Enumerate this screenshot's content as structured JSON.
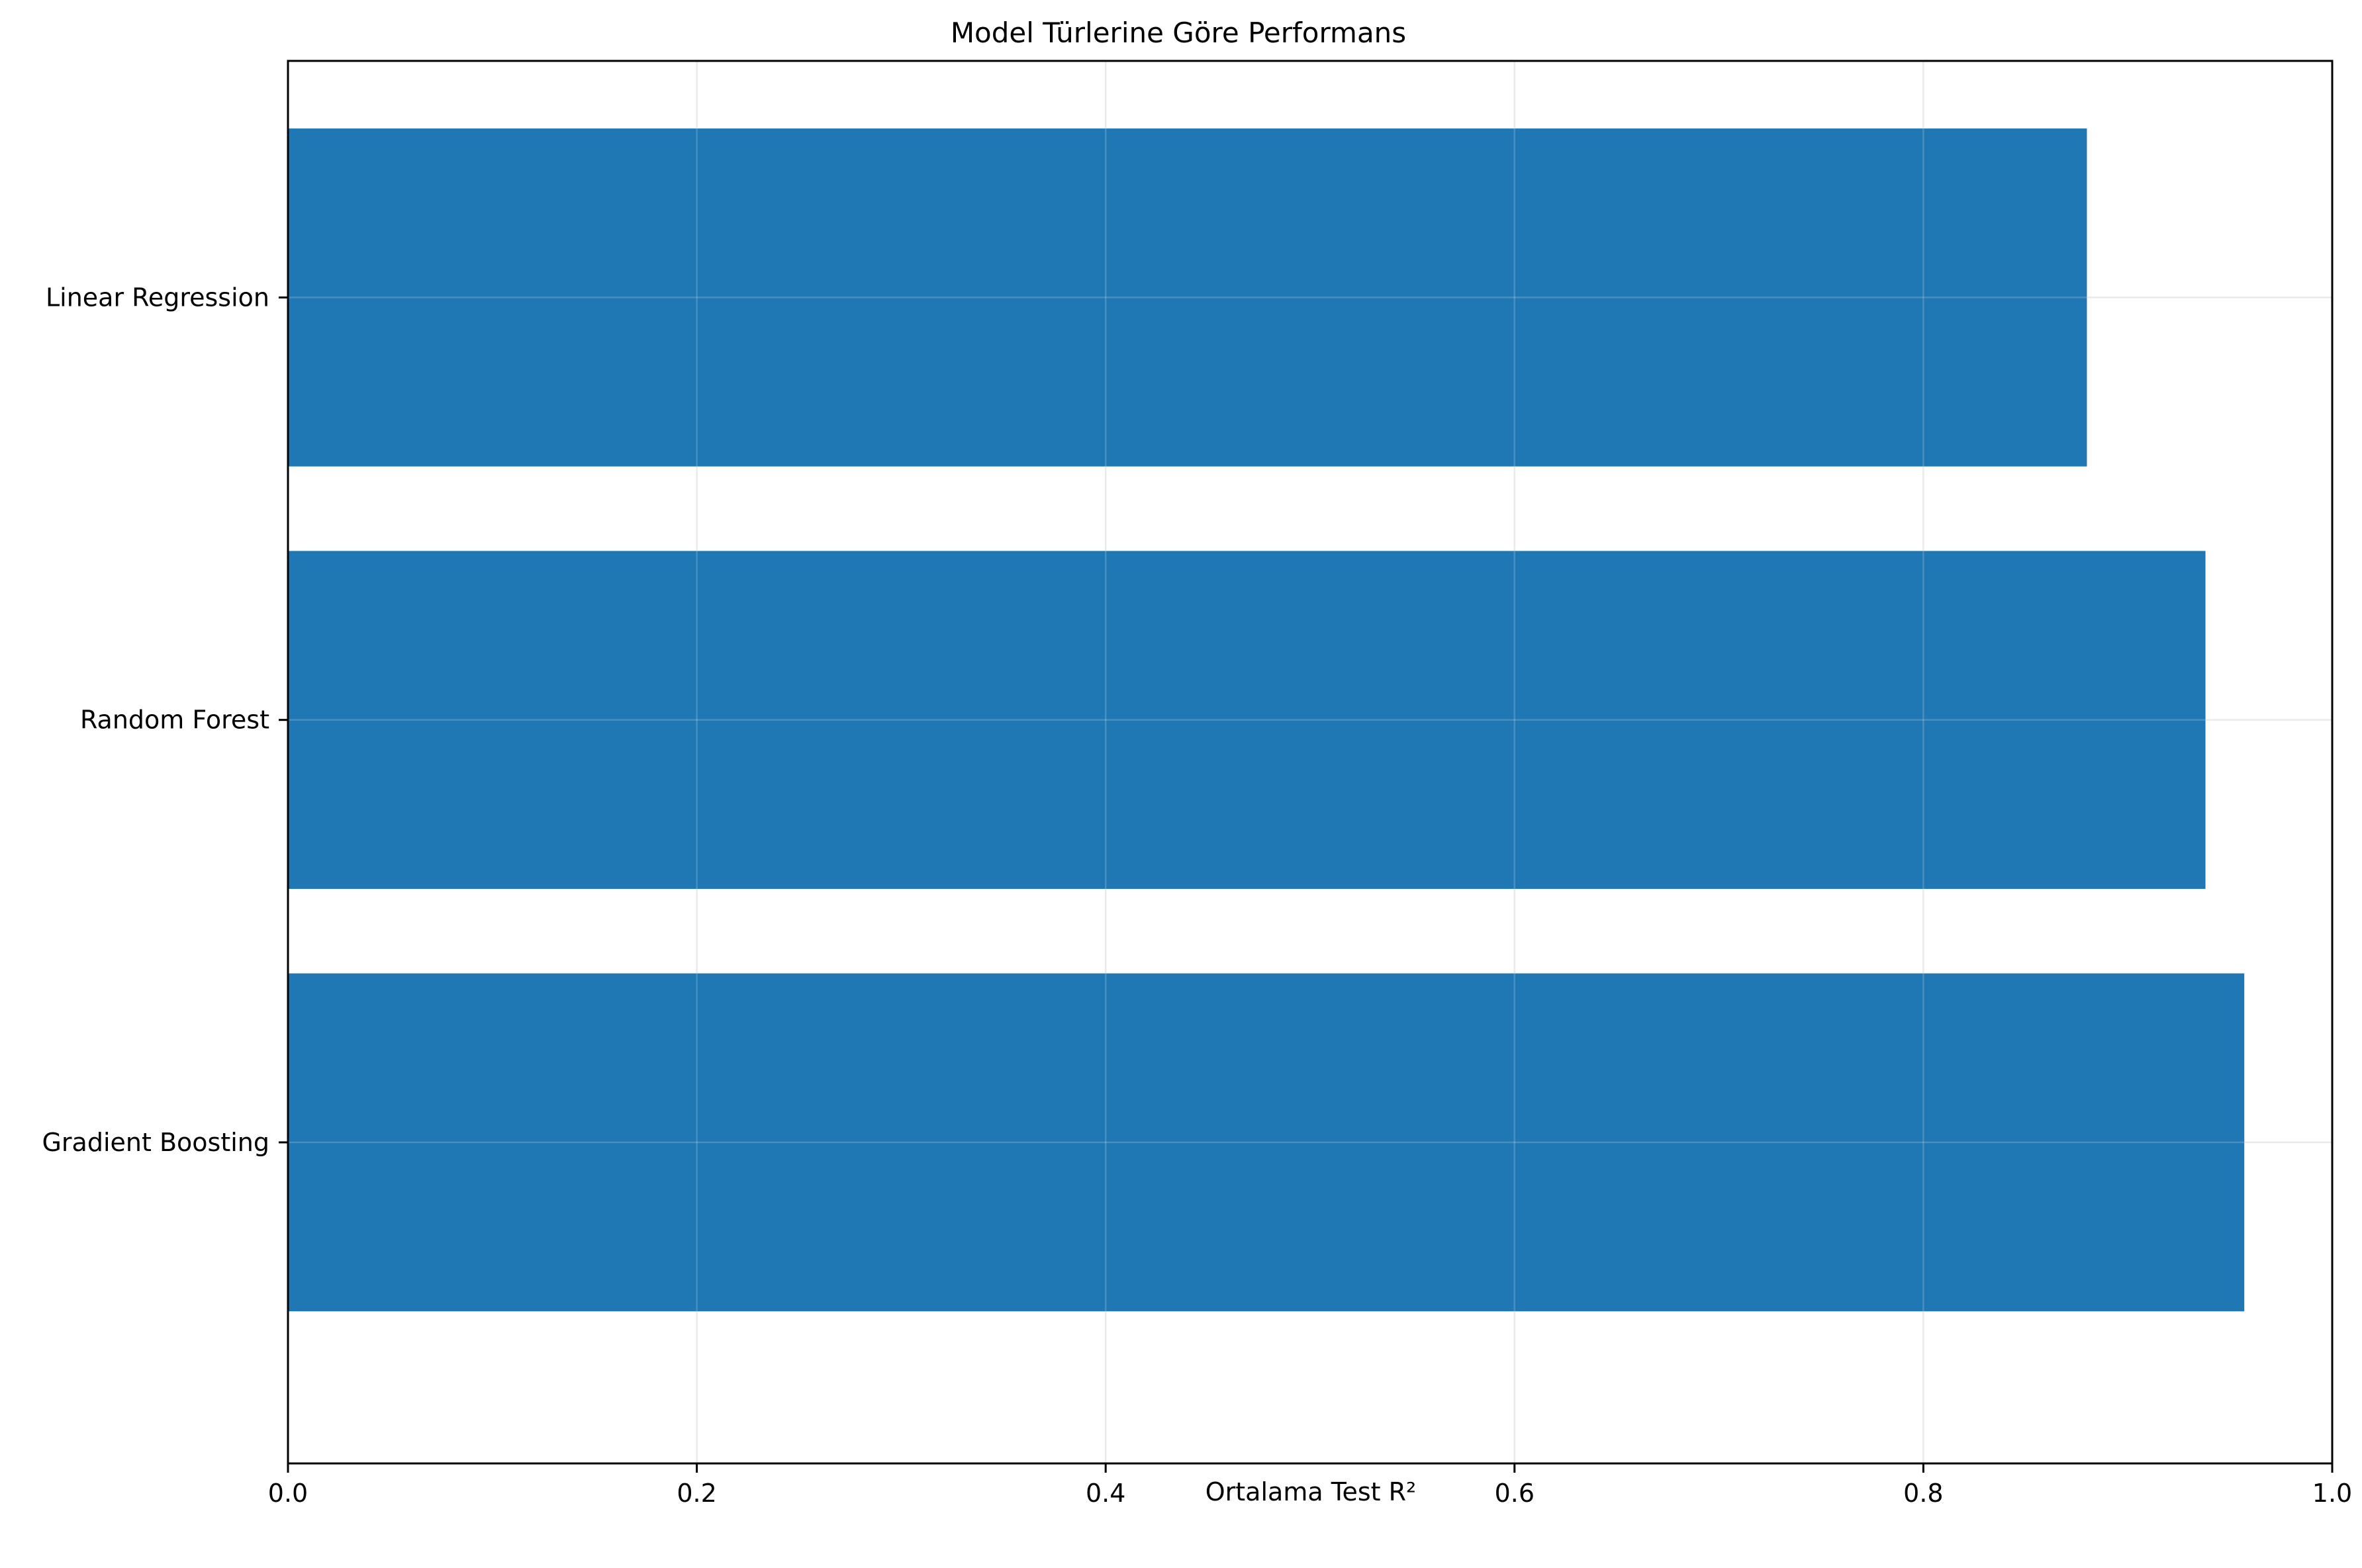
{
  "chart_data": {
    "type": "bar",
    "orientation": "horizontal",
    "title": "Model Türlerine Göre Performans",
    "xlabel": "Ortalama Test R²",
    "ylabel": "",
    "categories": [
      "Linear Regression",
      "Random Forest",
      "Gradient Boosting"
    ],
    "values": [
      0.88,
      0.938,
      0.957
    ],
    "xlim": [
      0,
      1.0
    ],
    "xticks": [
      "0.0",
      "0.2",
      "0.4",
      "0.6",
      "0.8",
      "1.0"
    ],
    "grid": true,
    "legend": "none",
    "bar_color": "#1f77b4",
    "grid_color": "#e6e6e6"
  }
}
